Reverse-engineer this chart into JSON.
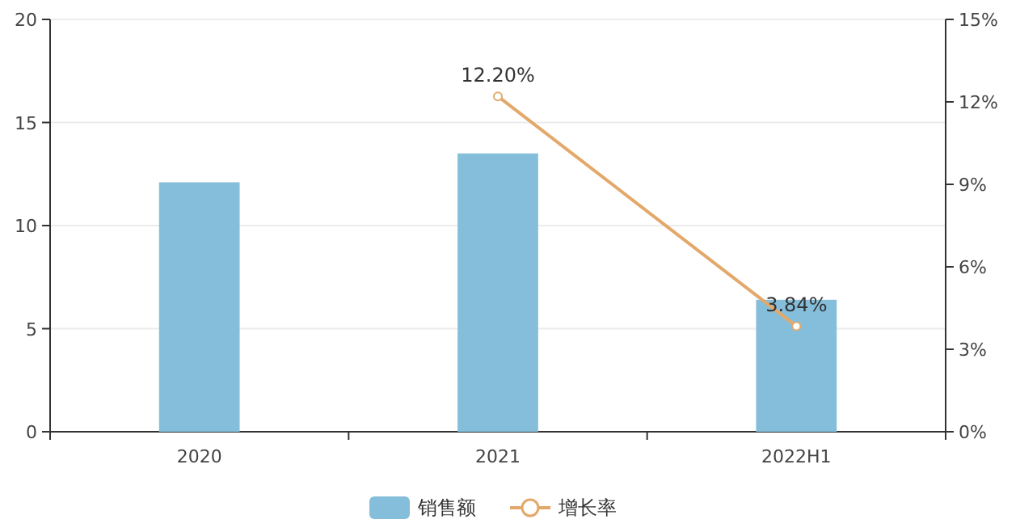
{
  "chart_data": {
    "type": "bar",
    "categories": [
      "2020",
      "2021",
      "2022H1"
    ],
    "series": [
      {
        "name": "销售额",
        "color": "#85bedb",
        "values": [
          12.1,
          13.5,
          6.4
        ]
      },
      {
        "name": "增长率",
        "type": "line",
        "axis": "y2",
        "color": "#e3a86a",
        "marker": "circle",
        "values": [
          null,
          12.2,
          3.84
        ],
        "value_labels": [
          null,
          "12.20%",
          "3.84%"
        ]
      }
    ],
    "ylim": [
      0,
      20
    ],
    "yticks": [
      0,
      5,
      10,
      15,
      20
    ],
    "y2lim": [
      0,
      15
    ],
    "y2ticks": [
      {
        "value": 0,
        "label": "0%"
      },
      {
        "value": 3,
        "label": "3%"
      },
      {
        "value": 6,
        "label": "6%"
      },
      {
        "value": 9,
        "label": "9%"
      },
      {
        "value": 12,
        "label": "12%"
      },
      {
        "value": 15,
        "label": "15%"
      }
    ],
    "grid": "y",
    "legend": "bottom"
  }
}
